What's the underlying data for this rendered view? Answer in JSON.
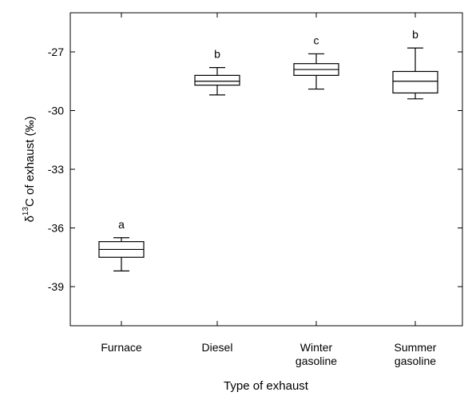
{
  "chart_data": {
    "type": "box",
    "xlabel": "Type of exhaust",
    "ylabel": {
      "delta": "δ",
      "sup": "13",
      "rest": "C of exhaust (‰)"
    },
    "ylim": [
      -41,
      -25
    ],
    "yticks": [
      "-27",
      "-30",
      "-33",
      "-36",
      "-39"
    ],
    "categories": [
      {
        "lines": [
          "Furnace"
        ]
      },
      {
        "lines": [
          "Diesel"
        ]
      },
      {
        "lines": [
          "Winter",
          "gasoline"
        ]
      },
      {
        "lines": [
          "Summer",
          "gasoline"
        ]
      }
    ],
    "boxes": [
      {
        "group_letter": "a",
        "whisker_low": -38.2,
        "q1": -37.5,
        "median": -37.1,
        "q3": -36.7,
        "whisker_high": -36.5
      },
      {
        "group_letter": "b",
        "whisker_low": -29.2,
        "q1": -28.7,
        "median": -28.5,
        "q3": -28.2,
        "whisker_high": -27.8
      },
      {
        "group_letter": "c",
        "whisker_low": -28.9,
        "q1": -28.2,
        "median": -27.9,
        "q3": -27.6,
        "whisker_high": -27.1
      },
      {
        "group_letter": "b",
        "whisker_low": -29.4,
        "q1": -29.1,
        "median": -28.5,
        "q3": -28.0,
        "whisker_high": -26.8
      }
    ],
    "grid": false
  }
}
